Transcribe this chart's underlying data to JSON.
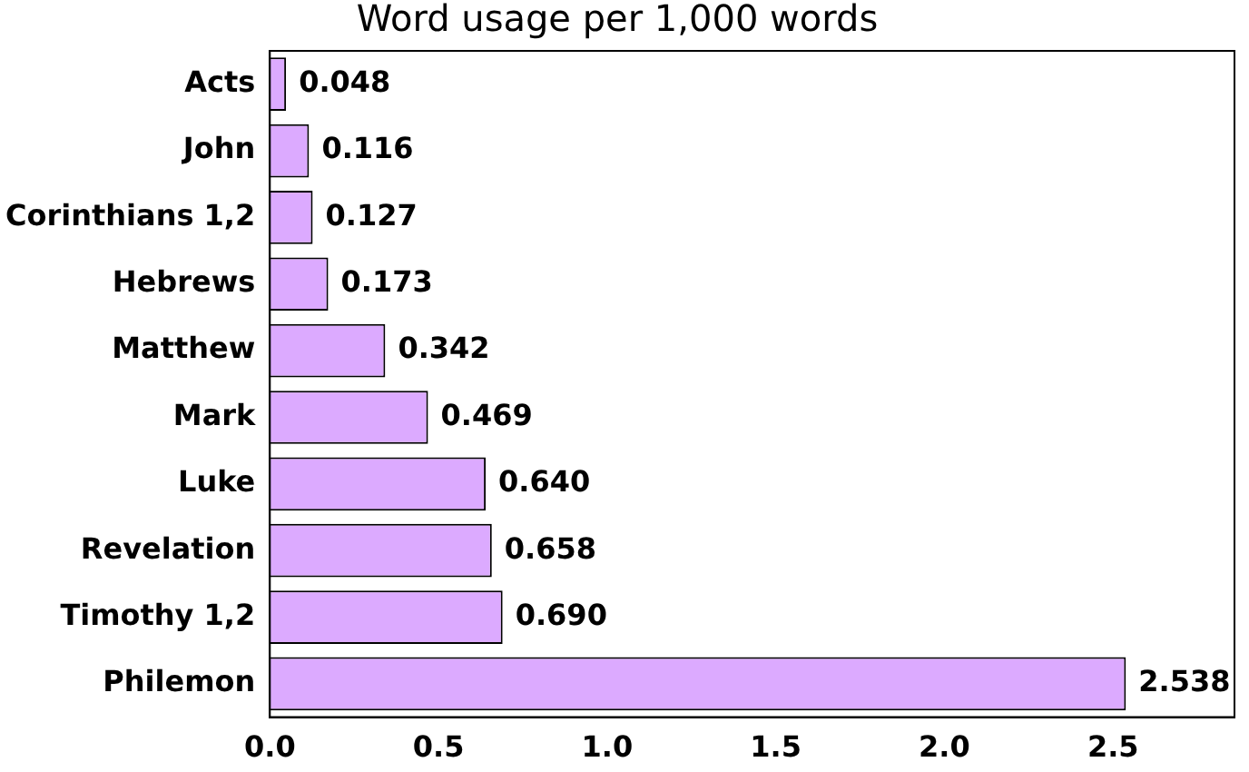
{
  "chart_data": {
    "type": "bar",
    "orientation": "horizontal",
    "title": "Word usage per 1,000 words",
    "categories": [
      "Acts",
      "John",
      "Corinthians 1,2",
      "Hebrews",
      "Matthew",
      "Mark",
      "Luke",
      "Revelation",
      "Timothy 1,2",
      "Philemon"
    ],
    "values": [
      0.048,
      0.116,
      0.127,
      0.173,
      0.342,
      0.469,
      0.64,
      0.658,
      0.69,
      2.538
    ],
    "color": "#dcaaff",
    "xlim": [
      0,
      2.86
    ],
    "xticks": [
      {
        "value": 0,
        "label": "0.0"
      },
      0.5,
      {
        "value": 1,
        "label": "1.0"
      },
      1.5,
      {
        "value": 2,
        "label": "2.0"
      },
      2.5
    ],
    "value_labels": [
      "0.048",
      "0.116",
      "0.127",
      "0.173",
      "0.342",
      "0.469",
      "0.640",
      "0.658",
      "0.690",
      "2.538"
    ],
    "grid": false,
    "legend": false
  }
}
